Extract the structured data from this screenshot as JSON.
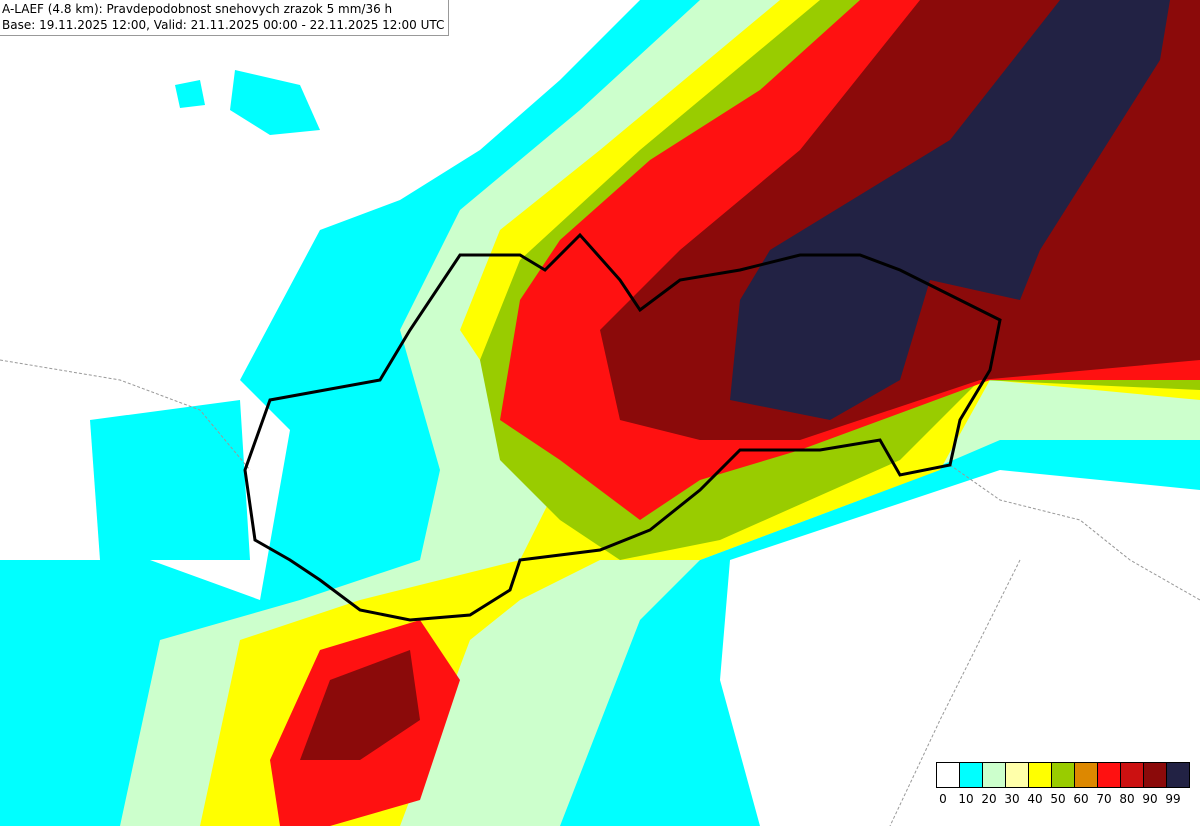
{
  "header": {
    "title": "A-LAEF (4.8 km): Pravdepodobnost snehovych zrazok 5 mm/36 h",
    "subtitle": "Base: 19.11.2025 12:00, Valid: 21.11.2025 00:00 - 22.11.2025 12:00 UTC"
  },
  "legend": {
    "items": [
      {
        "color": "#ffffff",
        "label": "0"
      },
      {
        "color": "#00ffff",
        "label": "10"
      },
      {
        "color": "#ccffcc",
        "label": "20"
      },
      {
        "color": "#ffffaa",
        "label": "30"
      },
      {
        "color": "#ffff00",
        "label": "40"
      },
      {
        "color": "#99cc00",
        "label": "50"
      },
      {
        "color": "#dd8800",
        "label": "60"
      },
      {
        "color": "#ff1111",
        "label": "70"
      },
      {
        "color": "#cc1111",
        "label": "80"
      },
      {
        "color": "#8b0a0a",
        "label": "90"
      },
      {
        "color": "#222244",
        "label": "99"
      }
    ]
  }
}
